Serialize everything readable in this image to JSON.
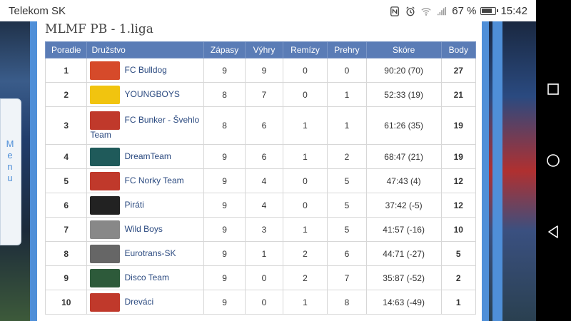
{
  "status_bar": {
    "carrier": "Telekom SK",
    "battery": "67 %",
    "time": "15:42"
  },
  "side_menu": {
    "label": "Menu"
  },
  "league_title": "MLMF PB - 1.liga",
  "table": {
    "headers": [
      "Poradie",
      "Družstvo",
      "Zápasy",
      "Výhry",
      "Remízy",
      "Prehry",
      "Skóre",
      "Body"
    ],
    "rows": [
      {
        "pos": "1",
        "team": "FC Bulldog",
        "played": "9",
        "won": "9",
        "draw": "0",
        "lost": "0",
        "score": "90:20 (70)",
        "points": "27",
        "logo_color": "#d64a2a"
      },
      {
        "pos": "2",
        "team": "YOUNGBOYS",
        "played": "8",
        "won": "7",
        "draw": "0",
        "lost": "1",
        "score": "52:33 (19)",
        "points": "21",
        "logo_color": "#f1c40f"
      },
      {
        "pos": "3",
        "team": "FC Bunker - Švehlo Team",
        "played": "8",
        "won": "6",
        "draw": "1",
        "lost": "1",
        "score": "61:26 (35)",
        "points": "19",
        "logo_color": "#c0392b"
      },
      {
        "pos": "4",
        "team": "DreamTeam",
        "played": "9",
        "won": "6",
        "draw": "1",
        "lost": "2",
        "score": "68:47 (21)",
        "points": "19",
        "logo_color": "#1f5a5a"
      },
      {
        "pos": "5",
        "team": "FC Norky Team",
        "played": "9",
        "won": "4",
        "draw": "0",
        "lost": "5",
        "score": "47:43 (4)",
        "points": "12",
        "logo_color": "#c0392b"
      },
      {
        "pos": "6",
        "team": "Piráti",
        "played": "9",
        "won": "4",
        "draw": "0",
        "lost": "5",
        "score": "37:42 (-5)",
        "points": "12",
        "logo_color": "#222222"
      },
      {
        "pos": "7",
        "team": "Wild Boys",
        "played": "9",
        "won": "3",
        "draw": "1",
        "lost": "5",
        "score": "41:57 (-16)",
        "points": "10",
        "logo_color": "#888888"
      },
      {
        "pos": "8",
        "team": "Eurotrans-SK",
        "played": "9",
        "won": "1",
        "draw": "2",
        "lost": "6",
        "score": "44:71 (-27)",
        "points": "5",
        "logo_color": "#666666"
      },
      {
        "pos": "9",
        "team": "Disco Team",
        "played": "9",
        "won": "0",
        "draw": "2",
        "lost": "7",
        "score": "35:87 (-52)",
        "points": "2",
        "logo_color": "#2d5a3a"
      },
      {
        "pos": "10",
        "team": "Dreváci",
        "played": "9",
        "won": "0",
        "draw": "1",
        "lost": "8",
        "score": "14:63 (-49)",
        "points": "1",
        "logo_color": "#c0392b"
      }
    ]
  }
}
